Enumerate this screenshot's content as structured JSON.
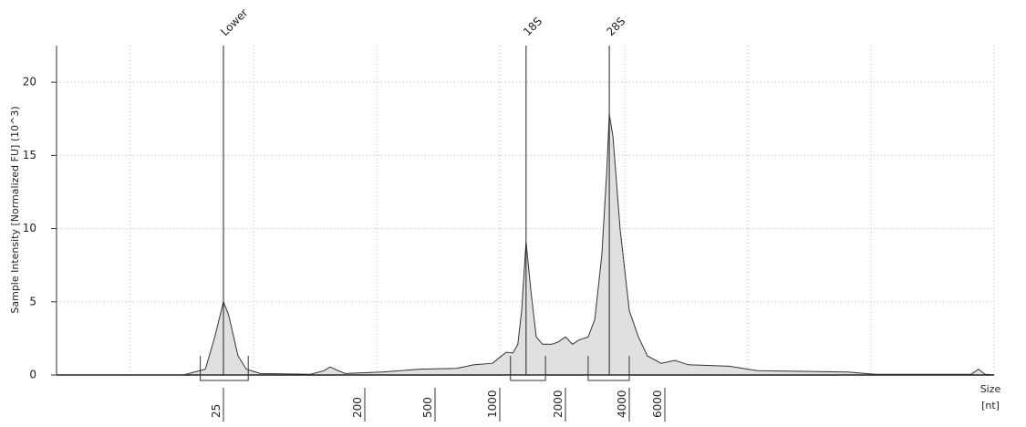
{
  "chart_data": {
    "type": "area",
    "y_label": "Sample Intensity [Normalized FU] (10^3)",
    "x_label": "Size",
    "x_unit": "[nt]",
    "x": [
      5,
      17,
      21,
      23,
      25,
      27,
      31,
      35,
      43,
      90,
      110,
      120,
      135,
      150,
      250,
      410,
      630,
      760,
      925,
      1000,
      1070,
      1150,
      1210,
      1260,
      1320,
      1390,
      1470,
      1570,
      1730,
      1850,
      2000,
      2160,
      2320,
      2560,
      2750,
      2970,
      3130,
      3220,
      3350,
      3620,
      4000,
      4440,
      4920,
      5750,
      6530,
      7350,
      10400,
      13200,
      28700,
      36300,
      82200,
      87500,
      92500,
      100000
    ],
    "values": [
      0,
      0,
      0.4,
      2.6,
      5.0,
      4.1,
      1.3,
      0.4,
      0.1,
      0.05,
      0.3,
      0.55,
      0.3,
      0.1,
      0.2,
      0.4,
      0.45,
      0.7,
      0.8,
      1.2,
      1.55,
      1.5,
      2.1,
      4.4,
      9.1,
      5.7,
      2.6,
      2.1,
      2.1,
      2.25,
      2.6,
      2.1,
      2.4,
      2.6,
      3.8,
      8.2,
      13.8,
      17.8,
      16.3,
      10.0,
      4.4,
      2.6,
      1.3,
      0.8,
      1.0,
      0.7,
      0.6,
      0.3,
      0.2,
      0.05,
      0.05,
      0.4,
      0.05,
      0
    ],
    "color": "#e0e0e0",
    "xlim": [
      5,
      100000
    ],
    "xticks": [
      25,
      200,
      500,
      1000,
      2000,
      4000,
      6000
    ],
    "ylim": [
      0,
      22.5
    ],
    "yticks": [
      0,
      5,
      10,
      15,
      20
    ],
    "grid": true,
    "markers": [
      {
        "label": "Lower",
        "x": 25
      },
      {
        "label": "18S",
        "x": 1320
      },
      {
        "label": "28S",
        "x": 3220
      }
    ],
    "regions": [
      [
        20,
        36
      ],
      [
        1120,
        1620
      ],
      [
        2560,
        4000
      ]
    ]
  }
}
